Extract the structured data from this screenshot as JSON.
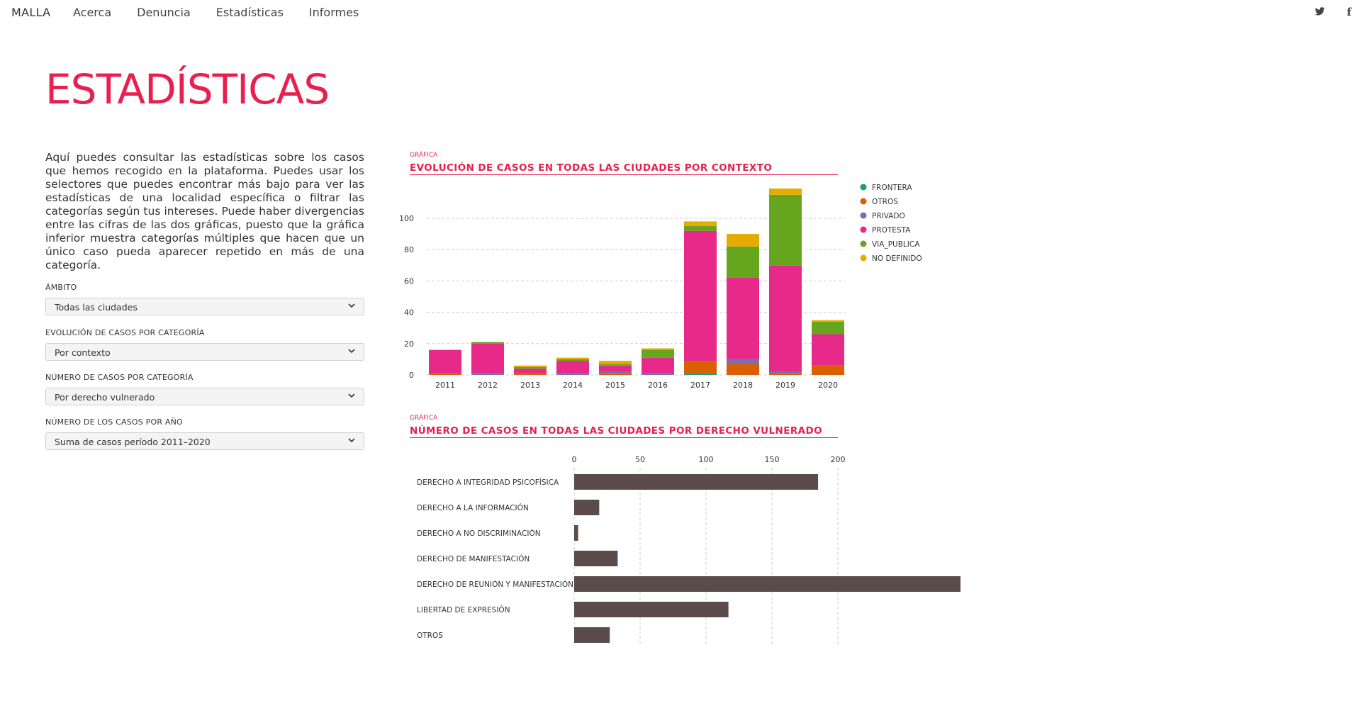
{
  "nav": {
    "brand": "MALLA",
    "links": [
      "Acerca",
      "Denuncia",
      "Estadísticas",
      "Informes"
    ],
    "twitter_glyph": "🐦",
    "facebook_glyph": "f"
  },
  "icons": {
    "twitter": "twitter-icon",
    "facebook": "facebook-icon",
    "chevron": "chevron-down-icon"
  },
  "page": {
    "title": "ESTADÍSTICAS",
    "intro": "Aquí puedes consultar las estadísticas sobre los casos que hemos recogido en la plataforma. Puedes usar los selectores que puedes encontrar más bajo para ver las estadísticas de una localidad específica o filtrar las categorías según tus intereses. Puede haber divergencias entre las cifras de las dos gráficas, puesto que la gráfica inferior muestra categorías múltiples que hacen que un único caso pueda aparecer repetido en más de una categoría."
  },
  "filters": [
    {
      "label": "ÁMBITO",
      "value": "Todas las ciudades"
    },
    {
      "label": "EVOLUCIÓN DE CASOS POR CATEGORÍA",
      "value": "Por contexto"
    },
    {
      "label": "NÚMERO DE CASOS POR CATEGORÍA",
      "value": "Por derecho vulnerado"
    },
    {
      "label": "NÚMERO DE LOS CASOS POR AÑO",
      "value": "Suma de casos período 2011–2020"
    }
  ],
  "colors": {
    "accent": "#e8204f",
    "bar_dark": "#5c4b4b",
    "grid": "#cccccc"
  },
  "chart_data": [
    {
      "type": "bar",
      "stacked": true,
      "caption": "GRÁFICA",
      "title": "EVOLUCIÓN DE CASOS EN TODAS LAS CIUDADES POR CONTEXTO",
      "categories": [
        "2011",
        "2012",
        "2013",
        "2014",
        "2015",
        "2016",
        "2017",
        "2018",
        "2019",
        "2020"
      ],
      "ylim": [
        0,
        120
      ],
      "yticks": [
        0,
        20,
        40,
        60,
        80,
        100
      ],
      "grid": true,
      "legend_position": "right",
      "series": [
        {
          "name": "FRONTERA",
          "color": "#1a9e77",
          "values": [
            0,
            0,
            0,
            0,
            0,
            0,
            1,
            0,
            0,
            0
          ]
        },
        {
          "name": "OTROS",
          "color": "#d95f02",
          "values": [
            1,
            0,
            1,
            0,
            1,
            0,
            8,
            7,
            1,
            6
          ]
        },
        {
          "name": "PRIVADO",
          "color": "#7570b3",
          "values": [
            0,
            1,
            0,
            1,
            1,
            1,
            0,
            3,
            1,
            0
          ]
        },
        {
          "name": "PROTESTA",
          "color": "#e7298a",
          "values": [
            15,
            19,
            3,
            8,
            4,
            10,
            83,
            52,
            68,
            20
          ]
        },
        {
          "name": "VIA_PUBLICA",
          "color": "#66a61e",
          "values": [
            0,
            1,
            1,
            1,
            1,
            5,
            3,
            20,
            45,
            8
          ]
        },
        {
          "name": "NO DEFINIDO",
          "color": "#e6ab02",
          "values": [
            0,
            0,
            1,
            1,
            2,
            1,
            3,
            8,
            4,
            1
          ]
        }
      ]
    },
    {
      "type": "bar",
      "orientation": "horizontal",
      "caption": "GRÁFICA",
      "title": "NÚMERO DE CASOS EN TODAS LAS CIUDADES POR DERECHO VULNERADO",
      "categories": [
        "DERECHO A INTEGRIDAD PSICOFÍSICA",
        "DERECHO A LA INFORMACIÓN",
        "DERECHO A NO DISCRIMINACIÓN",
        "DERECHO DE MANIFESTACIÓN",
        "DERECHO DE REUNIÓN Y MANIFESTACIÓN",
        "LIBERTAD DE EXPRESIÓN",
        "OTROS"
      ],
      "values": [
        185,
        19,
        3,
        33,
        293,
        117,
        27
      ],
      "xlim": [
        0,
        300
      ],
      "xticks": [
        0,
        50,
        100,
        150,
        200
      ],
      "grid": true
    }
  ]
}
